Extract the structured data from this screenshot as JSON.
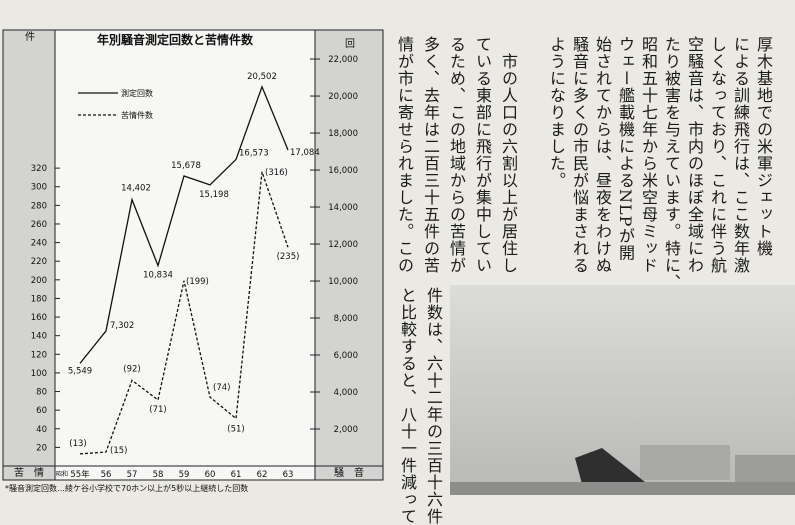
{
  "chart_data": {
    "type": "line",
    "title": "年別騒音測定回数と苦情件数",
    "x_prefix": "昭和",
    "categories": [
      "55年",
      "56",
      "57",
      "58",
      "59",
      "60",
      "61",
      "62",
      "63"
    ],
    "y_unit": "件",
    "y_label": "苦　情",
    "y2_unit": "回",
    "y2_label": "騒　音",
    "ylim": [
      0,
      463
    ],
    "yticks": [
      20,
      40,
      60,
      80,
      100,
      120,
      140,
      160,
      180,
      200,
      220,
      240,
      260,
      280,
      300,
      320
    ],
    "y2lim": [
      0,
      23300
    ],
    "y2ticks": [
      {
        "value": 2000,
        "label": "2,000"
      },
      {
        "value": 4000,
        "label": "4,000"
      },
      {
        "value": 6000,
        "label": "6,000"
      },
      {
        "value": 8000,
        "label": "8,000"
      },
      {
        "value": 10000,
        "label": "10,000"
      },
      {
        "value": 12000,
        "label": "12,000"
      },
      {
        "value": 14000,
        "label": "14,000"
      },
      {
        "value": 16000,
        "label": "16,000"
      },
      {
        "value": 18000,
        "label": "18,000"
      },
      {
        "value": 20000,
        "label": "20,000"
      },
      {
        "value": 22000,
        "label": "22,000"
      }
    ],
    "series": [
      {
        "name": "測定回数",
        "color": "#111111",
        "axis": "y2",
        "dash": false,
        "values": [
          5549,
          7302,
          14402,
          10834,
          15678,
          15198,
          16573,
          20502,
          17084
        ],
        "value_labels": [
          "5,549",
          "7,302",
          "14,402",
          "10,834",
          "15,678",
          "15,198",
          "16,573",
          "20,502",
          "17,084"
        ]
      },
      {
        "name": "苦情件数",
        "color": "#111111",
        "axis": "y",
        "dash": true,
        "values": [
          13,
          15,
          92,
          71,
          199,
          74,
          51,
          316,
          235
        ],
        "value_labels": [
          "(13)",
          "(15)",
          "(92)",
          "(71)",
          "(199)",
          "(74)",
          "(51)",
          "(316)",
          "(235)"
        ]
      }
    ],
    "note": "*騒音測定回数…綾ケ谷小学校で70ホン以上が5秒以上継続した回数"
  },
  "article": {
    "top_columns": [
      "厚木基地での米軍ジェット機",
      "による訓練飛行は、ここ数年激",
      "しくなっており、これに伴う航",
      "空騒音は、市内のほぼ全域にわ",
      "たり被害を与えています。特に、",
      "昭和五十七年から米空母ミッド",
      "ウェー艦載機によるNLPが開",
      "始されてからは、昼夜をわけぬ",
      "騒音に多くの市民が悩まされる",
      "ようになりました。",
      "　市の人口の六割以上が居住し",
      "ている東部に飛行が集中してい",
      "るため、この地域からの苦情が",
      "多く、去年は二百三十五件の苦",
      "情が市に寄せられました。この"
    ],
    "bottom_columns": [
      "件数は、六十二年の三百十六件",
      "と比較すると、八十一件減って"
    ]
  }
}
